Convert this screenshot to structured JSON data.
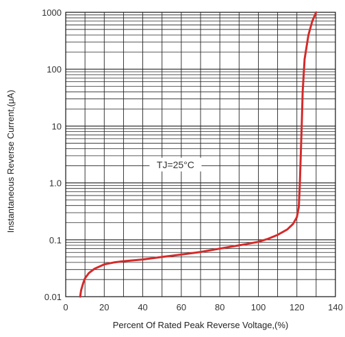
{
  "chart_data": {
    "type": "line",
    "title": "",
    "xlabel": "Percent Of Rated Peak Reverse Voltage,(%)",
    "ylabel": "Instantaneous Reverse Current,(μA)",
    "xlim": [
      0,
      140
    ],
    "ylim": [
      0.01,
      1000
    ],
    "yscale": "log",
    "grid": true,
    "x_ticks": [
      "0",
      "20",
      "40",
      "60",
      "80",
      "100",
      "120",
      "140"
    ],
    "y_ticks": [
      "0.01",
      "0.1",
      "1.0",
      "10",
      "100",
      "1000"
    ],
    "annotation": "TJ=25°C",
    "colors": {
      "curve": "#d42a2a",
      "grid": "#222222",
      "frame": "#111111"
    },
    "series": [
      {
        "x": [
          7.5,
          8,
          9,
          10,
          12,
          15,
          20,
          25,
          30,
          40,
          50,
          60,
          70,
          80,
          90,
          100,
          105,
          110,
          115,
          118,
          120,
          121,
          121.5,
          122,
          122.5,
          123,
          124,
          126,
          128,
          130
        ],
        "y": [
          0.01,
          0.013,
          0.017,
          0.021,
          0.026,
          0.031,
          0.037,
          0.04,
          0.042,
          0.045,
          0.05,
          0.055,
          0.061,
          0.07,
          0.08,
          0.092,
          0.104,
          0.122,
          0.152,
          0.19,
          0.25,
          0.38,
          0.9,
          3,
          10,
          40,
          150,
          400,
          700,
          1000
        ]
      }
    ]
  }
}
